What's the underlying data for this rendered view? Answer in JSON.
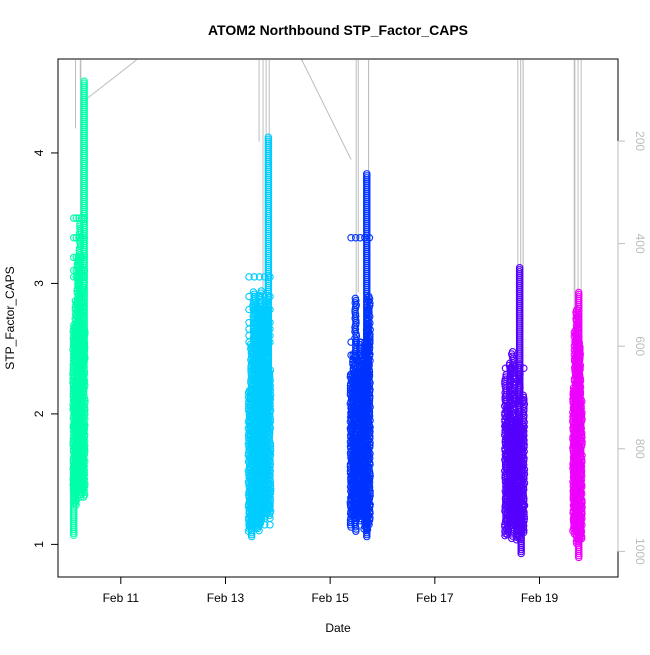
{
  "chart_data": {
    "type": "scatter",
    "title": "ATOM2 Northbound STP_Factor_CAPS",
    "xlabel": "Date",
    "ylabel": "STP_Factor_CAPS",
    "x_ticks": [
      "Feb 11",
      "Feb 13",
      "Feb 15",
      "Feb 17",
      "Feb 19"
    ],
    "x_tick_values": [
      11,
      13,
      15,
      17,
      19
    ],
    "xlim": [
      9.8,
      20.5
    ],
    "y_ticks": [
      1,
      2,
      3,
      4
    ],
    "ylim": [
      0.75,
      4.72
    ],
    "y2_ticks": [
      200,
      400,
      600,
      800,
      1000
    ],
    "y2lim": [
      1050,
      40
    ],
    "grid": false,
    "series": [
      {
        "color": "#00ffaa",
        "x_range": [
          10.1,
          10.3
        ],
        "y_range": [
          1.07,
          4.57
        ],
        "x_top": 10.3,
        "y_top": 4.55,
        "x_bottom": 10.1,
        "y_bottom": 1.07,
        "y_dense_band": [
          1.3,
          3.5
        ],
        "jump_values": [
          1.45,
          1.6,
          1.9,
          2.05,
          2.2,
          2.45,
          2.65,
          3.05,
          3.1,
          3.2,
          3.35,
          3.5
        ]
      },
      {
        "color": "#00ccff",
        "x_range": [
          13.45,
          13.85
        ],
        "y_range": [
          1.05,
          4.12
        ],
        "x_top": 13.82,
        "y_top": 4.12,
        "x_bottom": 13.5,
        "y_bottom": 1.06,
        "y_dense_band": [
          1.1,
          3.0
        ],
        "jump_values": [
          1.15,
          1.2,
          1.3,
          1.4,
          2.55,
          2.6,
          2.65,
          2.7,
          2.8,
          2.9,
          3.05
        ]
      },
      {
        "color": "#0033ff",
        "x_range": [
          15.4,
          15.75
        ],
        "y_range": [
          1.06,
          3.84
        ],
        "x_top": 15.7,
        "y_top": 3.84,
        "x_bottom": 15.7,
        "y_bottom": 1.06,
        "y_dense_band": [
          1.1,
          3.0
        ],
        "jump_values": [
          1.25,
          1.3,
          1.35,
          1.5,
          1.9,
          2.0,
          2.3,
          2.45,
          2.55,
          3.35
        ]
      },
      {
        "color": "#5500ff",
        "x_range": [
          18.35,
          18.7
        ],
        "y_range": [
          0.93,
          3.12
        ],
        "x_top": 18.62,
        "y_top": 3.12,
        "x_bottom": 18.65,
        "y_bottom": 0.93,
        "y_dense_band": [
          1.0,
          2.57
        ],
        "jump_values": [
          1.3,
          1.35,
          1.8,
          1.9,
          2.1,
          2.35
        ]
      },
      {
        "color": "#ee00ff",
        "x_range": [
          19.65,
          19.8
        ],
        "y_range": [
          0.9,
          2.93
        ],
        "x_top": 19.75,
        "y_top": 2.93,
        "x_bottom": 19.75,
        "y_bottom": 0.9,
        "y_dense_band": [
          1.0,
          2.9
        ],
        "jump_values": [
          1.3,
          1.6
        ]
      }
    ],
    "grey_lines": {
      "color": "#bdbdbd",
      "diagonal_segments": [
        {
          "x1": 10.3,
          "y1": 4.4,
          "x2": 11.3,
          "y2": 4.72
        },
        {
          "x1": 14.45,
          "y1": 4.72,
          "x2": 15.4,
          "y2": 3.95
        }
      ]
    }
  }
}
